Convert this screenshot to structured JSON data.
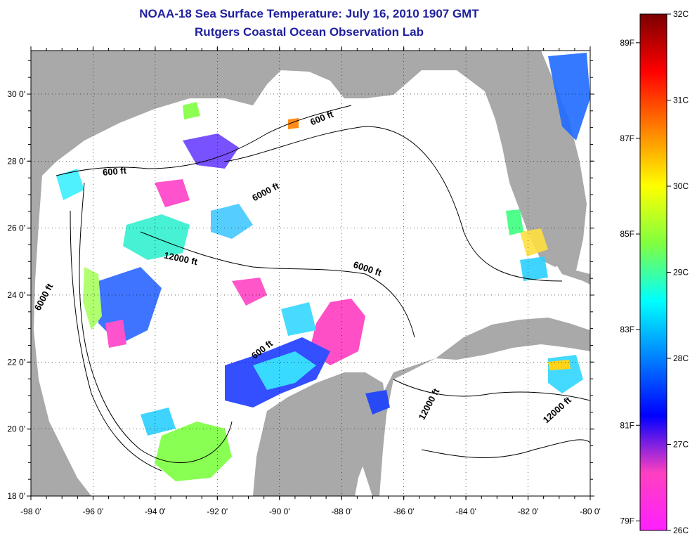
{
  "title_line1": "NOAA-18 Sea Surface Temperature:  July 16, 2010 1907 GMT",
  "title_line2": "Rutgers Coastal Ocean Observation Lab",
  "map": {
    "x_axis": {
      "range": [
        -98,
        -80
      ],
      "ticks": [
        {
          "value": -98,
          "label": "-98 0'"
        },
        {
          "value": -96,
          "label": "-96 0'"
        },
        {
          "value": -94,
          "label": "-94 0'"
        },
        {
          "value": -92,
          "label": "-92 0'"
        },
        {
          "value": -90,
          "label": "-90 0'"
        },
        {
          "value": -88,
          "label": "-88 0'"
        },
        {
          "value": -86,
          "label": "-86 0'"
        },
        {
          "value": -84,
          "label": "-84 0'"
        },
        {
          "value": -82,
          "label": "-82 0'"
        },
        {
          "value": -80,
          "label": "-80 0'"
        }
      ]
    },
    "y_axis": {
      "range": [
        18,
        31.3
      ],
      "ticks": [
        {
          "value": 18,
          "label": "18 0'"
        },
        {
          "value": 20,
          "label": "20 0'"
        },
        {
          "value": 22,
          "label": "22 0'"
        },
        {
          "value": 24,
          "label": "24 0'"
        },
        {
          "value": 26,
          "label": "26 0'"
        },
        {
          "value": 28,
          "label": "28 0'"
        },
        {
          "value": 30,
          "label": "30 0'"
        }
      ]
    },
    "grid": "dotted",
    "land_color": "#a9a9a9",
    "cloud_color": "#ffffff",
    "contour_labels": [
      {
        "text": "600 ft",
        "lon": -95.3,
        "lat": 27.6,
        "rot": -5
      },
      {
        "text": "600 ft",
        "lon": -88.6,
        "lat": 29.2,
        "rot": -22
      },
      {
        "text": "6000 ft",
        "lon": -90.4,
        "lat": 27.0,
        "rot": -28
      },
      {
        "text": "12000 ft",
        "lon": -93.2,
        "lat": 25.0,
        "rot": 12
      },
      {
        "text": "6000 ft",
        "lon": -97.5,
        "lat": 23.9,
        "rot": -62
      },
      {
        "text": "6000 ft",
        "lon": -87.2,
        "lat": 24.7,
        "rot": 18
      },
      {
        "text": "600 ft",
        "lon": -90.5,
        "lat": 22.3,
        "rot": -38
      },
      {
        "text": "12000 ft",
        "lon": -85.1,
        "lat": 20.7,
        "rot": -62
      },
      {
        "text": "12000 ft",
        "lon": -81.0,
        "lat": 20.5,
        "rot": -42
      }
    ]
  },
  "colorbar": {
    "min_c": 26,
    "max_c": 32,
    "celsius_ticks": [
      "32C",
      "31C",
      "30C",
      "29C",
      "28C",
      "27C",
      "26C"
    ],
    "fahrenheit_ticks": [
      "89F",
      "87F",
      "85F",
      "83F",
      "81F",
      "79F"
    ],
    "fahrenheit_values": [
      89,
      87,
      85,
      83,
      81,
      79
    ],
    "gradient_stops": [
      "#7a0000",
      "#ff0000",
      "#ff8000",
      "#ffff00",
      "#80ff40",
      "#00ffff",
      "#0080ff",
      "#0000ff",
      "#ff40c0",
      "#ff20ff"
    ]
  }
}
